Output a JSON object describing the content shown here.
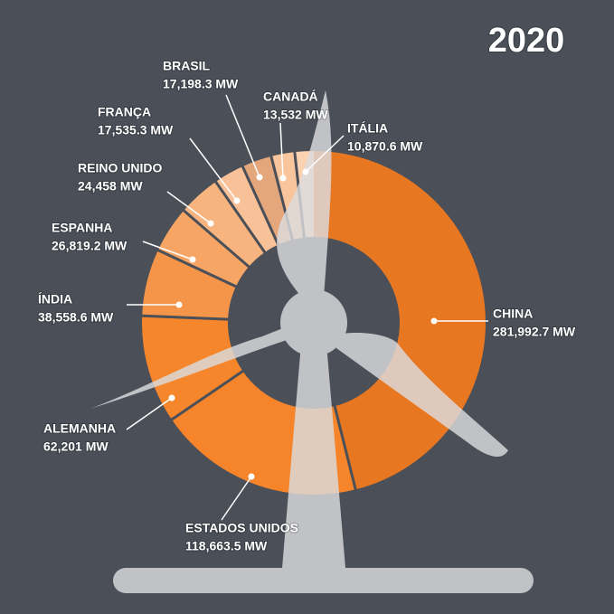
{
  "chart_data": {
    "type": "pie",
    "title": "2020",
    "categories": [
      "CHINA",
      "ESTADOS UNIDOS",
      "ALEMANHA",
      "ÍNDIA",
      "ESPANHA",
      "REINO UNIDO",
      "FRANÇA",
      "BRASIL",
      "CANADÁ",
      "ITÁLIA"
    ],
    "values": [
      281992.7,
      118663.5,
      62201,
      38558.6,
      26819.2,
      24458,
      17535.3,
      17198.3,
      13532,
      10870.6
    ],
    "value_labels": [
      "281,992.7 MW",
      "118,663.5 MW",
      "62,201 MW",
      "38,558.6 MW",
      "26,819.2 MW",
      "24,458 MW",
      "17,535.3 MW",
      "17,198.3 MW",
      "13,532 MW",
      "10,870.6 MW"
    ],
    "colors": [
      "#e87722",
      "#f5842a",
      "#f5862b",
      "#f5954a",
      "#f7a564",
      "#f8b47e",
      "#f9c198",
      "#e4a77c",
      "#f9c59d",
      "#fbd2b2"
    ]
  }
}
